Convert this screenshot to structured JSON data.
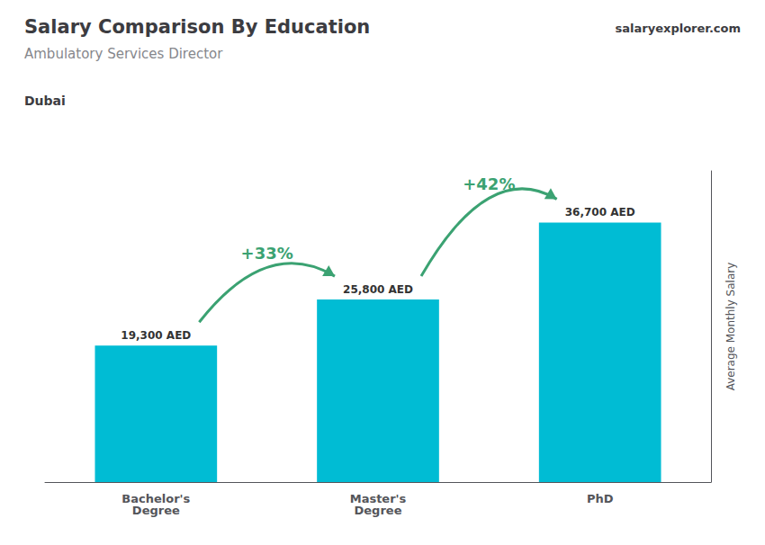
{
  "chart_data": {
    "type": "bar",
    "title": "Salary Comparison By Education",
    "subtitle": "Ambulatory Services Director",
    "annotations": [
      "Dubai",
      "salaryexplorer.com"
    ],
    "ylabel": "Average Monthly Salary",
    "categories": [
      "Bachelor's\nDegree",
      "Master's\nDegree",
      "PhD"
    ],
    "values": [
      19300,
      25800,
      36700
    ],
    "value_labels": [
      "19,300 AED",
      "25,800 AED",
      "36,700 AED"
    ],
    "data_labels": true,
    "arrow_labels": [
      "+33%",
      "+42%"
    ],
    "color": "#00bcd4",
    "ylim": [
      0,
      44000
    ],
    "yticks": [],
    "tick_labels": "x",
    "grid": false
  }
}
